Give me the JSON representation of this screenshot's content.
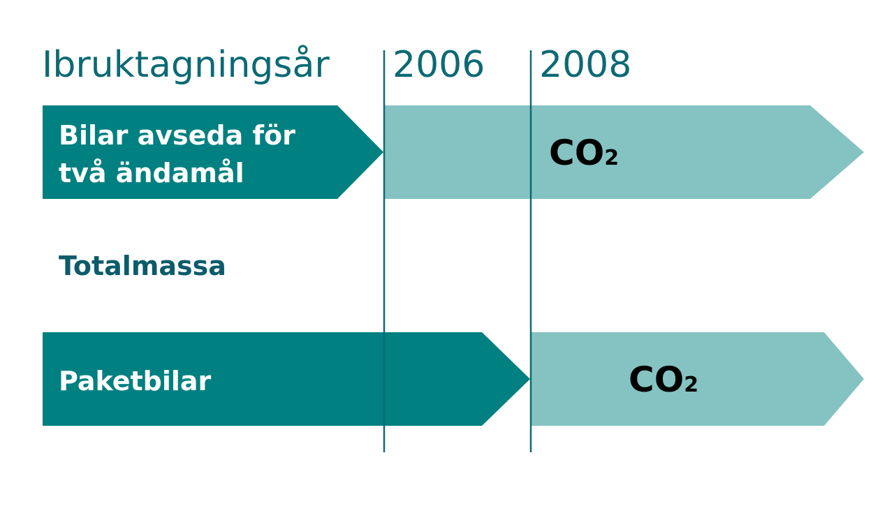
{
  "header": {
    "title": "Ibruktagningsår",
    "year_1": "2006",
    "year_2": "2008"
  },
  "rows": {
    "dual_purpose": {
      "label_line_1": "Bilar avseda för",
      "label_line_2": "två ändamål",
      "metric": "CO",
      "metric_sub": "2"
    },
    "total_mass": {
      "label": "Totalmassa"
    },
    "vans": {
      "label": "Paketbilar",
      "metric": "CO",
      "metric_sub": "2"
    }
  },
  "colors": {
    "dark_teal": "#008080",
    "light_teal": "#84c3c2",
    "header_text": "#0c6a74",
    "label_text": "#0c5b6a",
    "co2_text": "#000000",
    "white_text": "#ffffff"
  }
}
